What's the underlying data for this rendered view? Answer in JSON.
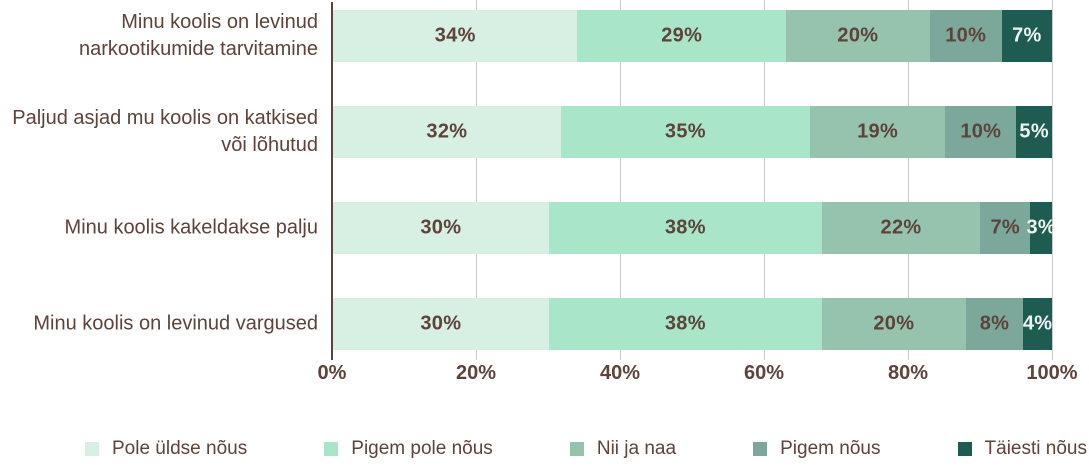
{
  "chart_data": {
    "type": "bar",
    "orientation": "horizontal-stacked",
    "title": "",
    "categories": [
      "Minu koolis on levinud narkootikumide tarvitamine",
      "Paljud asjad mu koolis on katkised või lõhutud",
      "Minu koolis kakeldakse palju",
      "Minu koolis on levinud vargused"
    ],
    "series": [
      {
        "name": "Pole üldse nõus",
        "color": "#d8efe3",
        "label_color": "#5d4339",
        "values": [
          34,
          32,
          30,
          30
        ]
      },
      {
        "name": "Pigem pole nõus",
        "color": "#a9e5c8",
        "label_color": "#5d4339",
        "values": [
          29,
          35,
          38,
          38
        ]
      },
      {
        "name": "Nii ja naa",
        "color": "#95c3ae",
        "label_color": "#5d4339",
        "values": [
          20,
          19,
          22,
          20
        ]
      },
      {
        "name": "Pigem nõus",
        "color": "#7ca89c",
        "label_color": "#5d4339",
        "values": [
          10,
          10,
          7,
          8
        ]
      },
      {
        "name": "Täiesti nõus",
        "color": "#1e5b51",
        "label_color": "#edf4ef",
        "values": [
          7,
          5,
          3,
          4
        ]
      }
    ],
    "value_suffix": "%",
    "x_ticks": [
      "0%",
      "20%",
      "40%",
      "60%",
      "80%",
      "100%"
    ],
    "xlim": [
      0,
      100
    ],
    "grid": "vertical",
    "legend_position": "bottom"
  },
  "style": {
    "gridline_color": "#cbcbcb",
    "axis_line_color": "#5a443b",
    "text_color": "#5d4339",
    "background_color": "#ffffff"
  }
}
